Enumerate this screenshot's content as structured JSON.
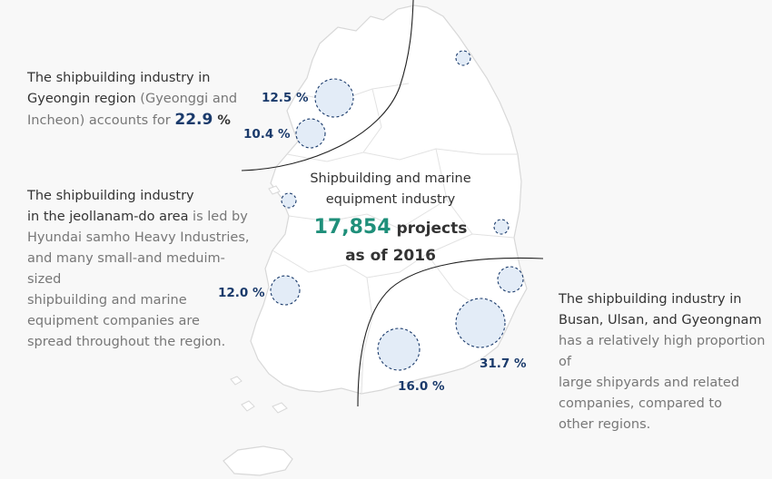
{
  "gyeongin": {
    "line1": "The shipbuilding industry in",
    "line2_bold": "Gyeongin region",
    "line2_rest": " (Gyeonggi and",
    "line3": "Incheon) accounts for ",
    "value": "22.9",
    "unit": " %"
  },
  "jeollanam": {
    "line1": "The shipbuilding industry",
    "line2_bold": "in the jeollanam-do area",
    "line2_rest": " is led by",
    "line3": "Hyundai samho Heavy Industries,",
    "line4": "and many small-and meduim-sized",
    "line5": "shipbuilding and marine",
    "line6": "equipment companies are",
    "line7": "spread throughout the region."
  },
  "busan": {
    "line1": "The shipbuilding industry in",
    "line2": "Busan, Ulsan, and Gyeongnam",
    "line3": "has a relatively high proportion of",
    "line4": "large shipyards and related",
    "line5": "companies, compared to",
    "line6": "other regions."
  },
  "center": {
    "line1": "Shipbuilding and marine",
    "line2": "equipment industry",
    "count": "17,854",
    "count_suffix": " projects",
    "line4": "as of 2016"
  },
  "percentages": {
    "p1": "12.5 %",
    "p2": "10.4 %",
    "p3": "12.0 %",
    "p4": "16.0 %",
    "p5": "31.7 %"
  },
  "colors": {
    "accent": "#1f8f7a",
    "navy": "#1a3a6b",
    "map_fill": "#ffffff",
    "map_stroke": "#d5d5d5",
    "bubble_fill": "#e3ecf7"
  }
}
